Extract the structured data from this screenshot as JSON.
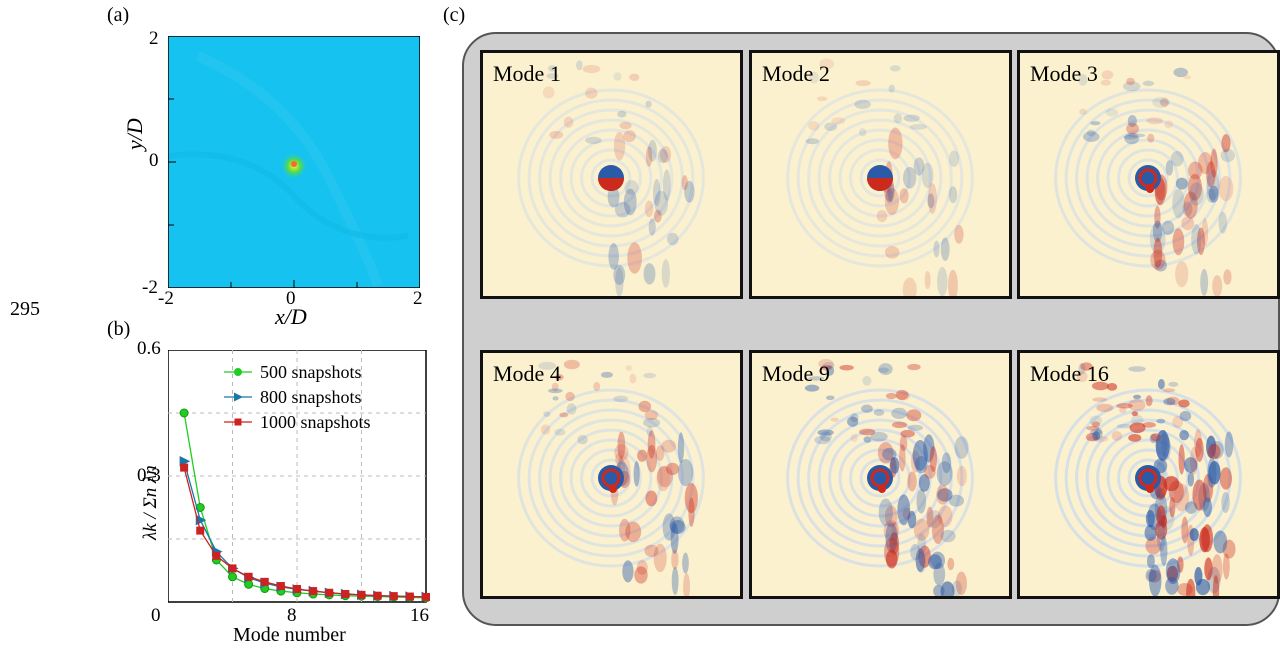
{
  "line_number": "295",
  "panels": {
    "a": {
      "label": "(a)",
      "xlabel": "x/D",
      "ylabel": "y/D",
      "x_ticks": [
        "-2",
        "0",
        "2"
      ],
      "y_ticks": [
        "2",
        "0",
        "-2"
      ],
      "field_color": "#16c2f0"
    },
    "b": {
      "label": "(b)",
      "xlabel": "Mode number",
      "ylabel": "λk / Σn λn",
      "x_ticks": [
        "0",
        "8",
        "16"
      ],
      "y_ticks": [
        "0.6",
        "0.3",
        "0"
      ]
    },
    "c": {
      "label": "(c)",
      "modes": [
        {
          "label": "Mode 1",
          "complexity": 1
        },
        {
          "label": "Mode 2",
          "complexity": 1
        },
        {
          "label": "Mode 3",
          "complexity": 2
        },
        {
          "label": "Mode 4",
          "complexity": 2
        },
        {
          "label": "Mode 9",
          "complexity": 3
        },
        {
          "label": "Mode 16",
          "complexity": 4
        }
      ],
      "colors": {
        "positive": "#cc2a1c",
        "negative": "#2a5aa8",
        "neutral": "#fbf1cf"
      }
    }
  },
  "chart_data": {
    "type": "line",
    "title": "",
    "xlabel": "Mode number",
    "ylabel": "λk / Σn λn",
    "xlim": [
      0,
      16
    ],
    "ylim": [
      0,
      0.6
    ],
    "grid": true,
    "legend_position": "top-right",
    "x": [
      1,
      2,
      3,
      4,
      5,
      6,
      7,
      8,
      9,
      10,
      11,
      12,
      13,
      14,
      15,
      16
    ],
    "series": [
      {
        "name": "500 snapshots",
        "color": "#22cc22",
        "marker": "circle",
        "values": [
          0.45,
          0.225,
          0.1,
          0.06,
          0.042,
          0.032,
          0.026,
          0.022,
          0.019,
          0.017,
          0.015,
          0.014,
          0.013,
          0.012,
          0.011,
          0.01
        ]
      },
      {
        "name": "800 snapshots",
        "color": "#1a78a8",
        "marker": "triangle-right",
        "values": [
          0.335,
          0.195,
          0.12,
          0.08,
          0.058,
          0.045,
          0.036,
          0.03,
          0.026,
          0.022,
          0.019,
          0.017,
          0.015,
          0.014,
          0.013,
          0.012
        ]
      },
      {
        "name": "1000 snapshots",
        "color": "#cc2222",
        "marker": "square",
        "values": [
          0.32,
          0.17,
          0.11,
          0.08,
          0.06,
          0.048,
          0.038,
          0.031,
          0.026,
          0.022,
          0.019,
          0.017,
          0.015,
          0.014,
          0.013,
          0.012
        ]
      }
    ]
  }
}
